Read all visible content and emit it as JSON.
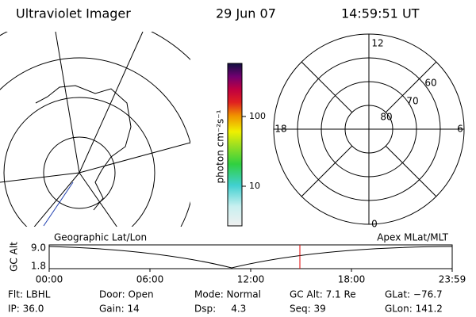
{
  "header": {
    "title": "Ultraviolet Imager",
    "date": "29 Jun 07",
    "time": "14:59:51 UT"
  },
  "colorbar": {
    "label": "photon cm⁻²s⁻¹",
    "ticks": [
      10,
      100
    ]
  },
  "polar_plot": {
    "mlt_labels": [
      "12",
      "6",
      "0",
      "18"
    ],
    "lat_labels": [
      "80",
      "70",
      "60"
    ]
  },
  "altitude_plot": {
    "left_label": "Geographic Lat/Lon",
    "right_label": "Apex MLat/MLT",
    "ylabel": "GC Alt",
    "yticks": [
      "9.0",
      "1.8"
    ],
    "xticks": [
      "00:00",
      "06:00",
      "12:00",
      "18:00",
      "23:59"
    ]
  },
  "footer": {
    "rows": [
      [
        "Flt: LBHL",
        "Door: Open",
        "Mode: Normal",
        "GC Alt: 7.1 Re",
        "GLat: −76.7"
      ],
      [
        "IP: 36.0",
        "Gain: 14",
        "Dsp:     4.3",
        "Seq: 39",
        "GLon: 141.2"
      ]
    ]
  }
}
